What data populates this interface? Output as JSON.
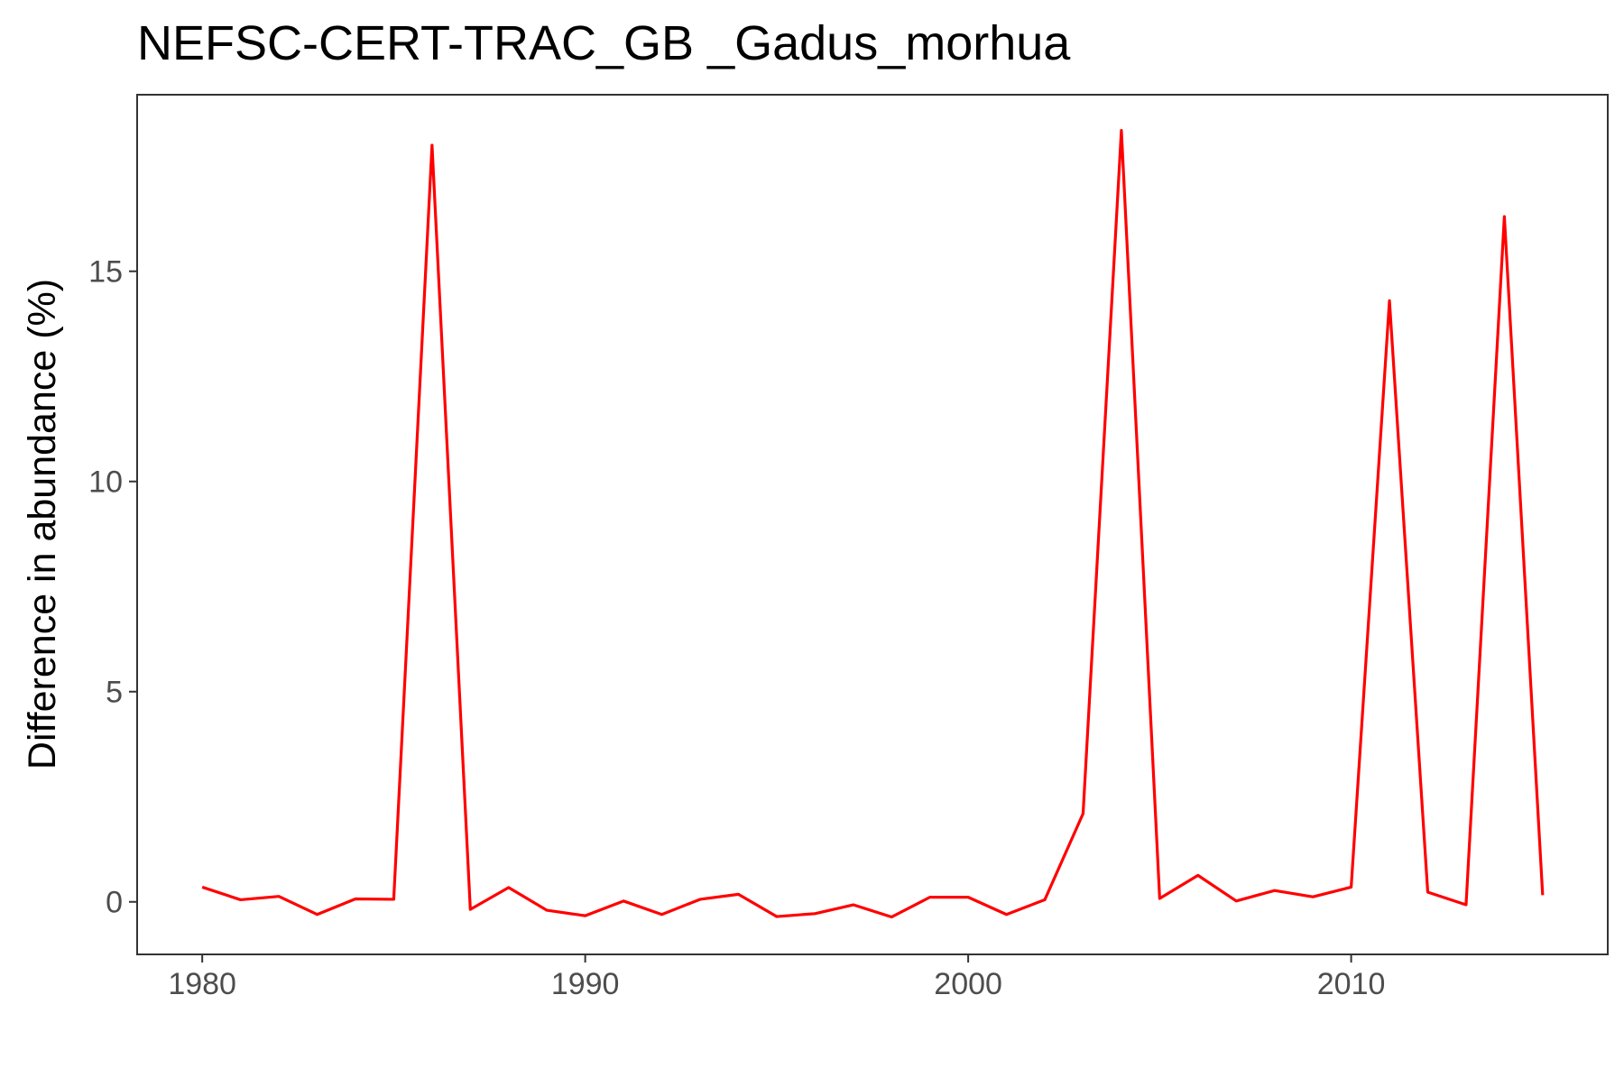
{
  "chart_data": {
    "type": "line",
    "title": "NEFSC-CERT-TRAC_GB _Gadus_morhua",
    "xlabel": "",
    "ylabel": "Difference in abundance (%)",
    "xlim": [
      1978.3,
      2016.7
    ],
    "ylim": [
      -1.25,
      19.2
    ],
    "x_ticks": [
      1980,
      1990,
      2000,
      2010
    ],
    "x_tick_labels": [
      "1980",
      "1990",
      "2000",
      "2010"
    ],
    "y_ticks": [
      0,
      5,
      10,
      15
    ],
    "y_tick_labels": [
      "0",
      "5",
      "10",
      "15"
    ],
    "grid": false,
    "legend": "none",
    "line_color": "#ff0000",
    "series": [
      {
        "x": [
          1980,
          1981,
          1982,
          1983,
          1984,
          1985,
          1986,
          1987,
          1988,
          1989,
          1990,
          1991,
          1992,
          1993,
          1994,
          1995,
          1996,
          1997,
          1998,
          1999,
          2000,
          2001,
          2002,
          2003,
          2004,
          2005,
          2006,
          2007,
          2008,
          2009,
          2010,
          2011,
          2012,
          2013,
          2014,
          2015
        ],
        "values": [
          0.35,
          0.05,
          0.13,
          -0.3,
          0.07,
          0.06,
          18.0,
          -0.18,
          0.34,
          -0.2,
          -0.33,
          0.02,
          -0.3,
          0.06,
          0.18,
          -0.35,
          -0.28,
          -0.07,
          -0.36,
          0.11,
          0.11,
          -0.3,
          0.05,
          2.1,
          18.35,
          0.08,
          0.63,
          0.02,
          0.27,
          0.12,
          0.35,
          14.3,
          0.23,
          -0.07,
          16.3,
          0.16
        ]
      }
    ]
  }
}
